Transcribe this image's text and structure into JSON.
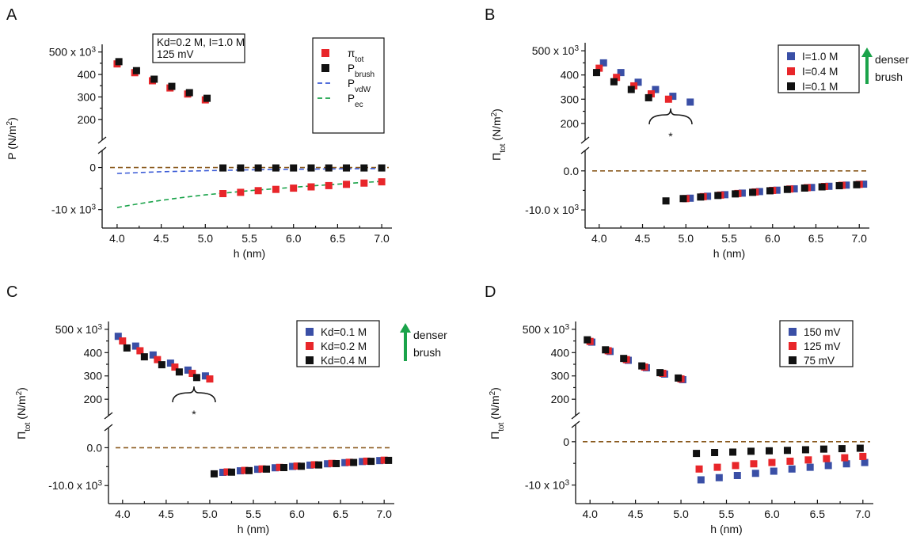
{
  "colors": {
    "red": "#e8262a",
    "black": "#111111",
    "blue": "#3a4fa6",
    "vdw": "#3b5bd6",
    "ec": "#1aa34a",
    "ref": "#8a5a1e",
    "arrow": "#1aa34a"
  },
  "chart_data": [
    {
      "panel": "A",
      "type": "scatter",
      "xlabel": "h (nm)",
      "ylabel": "P (N/m²)",
      "ylabel_parts": [
        "P (N/m",
        "2",
        ")"
      ],
      "xlim": [
        3.92,
        7.08
      ],
      "x_ticks": [
        "4.0",
        "4.5",
        "5.0",
        "5.5",
        "6.0",
        "6.5",
        "7.0"
      ],
      "upper": {
        "ylim": [
          150000,
          520000
        ],
        "ticks": [
          "200",
          "300",
          "400"
        ],
        "top_tick_label": "500 x 10",
        "top_tick_exp": "3"
      },
      "lower": {
        "ylim": [
          -11000,
          1800
        ],
        "ticks": [
          "0"
        ],
        "bottom_tick_label": "-10 x 10",
        "bottom_tick_exp": "3"
      },
      "note": [
        "Kd=0.2 M, I=1.0 M",
        "125 mV"
      ],
      "legend": [
        {
          "label": "π",
          "sub": "tot",
          "marker": "square",
          "color": "#e8262a"
        },
        {
          "label": "P",
          "sub": "brush",
          "marker": "square",
          "color": "#111111"
        },
        {
          "label": "P",
          "sub": "vdW",
          "marker": "dash",
          "color": "#3b5bd6"
        },
        {
          "label": "P",
          "sub": "ec",
          "marker": "dash",
          "color": "#1aa34a"
        }
      ],
      "series": [
        {
          "name": "πtot",
          "color": "#e8262a",
          "upper": {
            "x": [
              4.0,
              4.2,
              4.4,
              4.6,
              4.8,
              5.0
            ],
            "y": [
              447000,
              408000,
              372000,
              340000,
              313000,
              287000
            ]
          },
          "lower": {
            "x": [
              5.2,
              5.4,
              5.6,
              5.8,
              6.0,
              6.2,
              6.4,
              6.6,
              6.8,
              7.0
            ],
            "y": [
              -6200,
              -5900,
              -5500,
              -5200,
              -4900,
              -4600,
              -4300,
              -4000,
              -3700,
              -3400
            ]
          }
        },
        {
          "name": "Pbrush",
          "color": "#111111",
          "upper": {
            "x": [
              4.02,
              4.22,
              4.42,
              4.62,
              4.82,
              5.02
            ],
            "y": [
              457000,
              417000,
              379000,
              347000,
              319000,
              294000
            ]
          },
          "lower": {
            "x": [
              5.2,
              5.4,
              5.6,
              5.8,
              6.0,
              6.2,
              6.4,
              6.6,
              6.8,
              7.0
            ],
            "y": [
              -100,
              -100,
              -100,
              -100,
              -100,
              -100,
              -100,
              -100,
              -100,
              -100
            ]
          }
        }
      ],
      "curves": [
        {
          "name": "PvdW",
          "color": "#3b5bd6",
          "x": [
            4.0,
            4.5,
            5.0,
            5.5,
            6.0,
            6.5,
            7.0
          ],
          "y": [
            -1400,
            -1000,
            -750,
            -550,
            -420,
            -320,
            -250
          ]
        },
        {
          "name": "Pec",
          "color": "#1aa34a",
          "x": [
            4.0,
            4.25,
            4.5,
            4.75,
            5.0,
            5.25,
            5.5,
            5.75,
            6.0,
            6.25,
            6.5,
            6.75,
            7.0
          ],
          "y": [
            -9500,
            -8600,
            -7800,
            -7100,
            -6500,
            -6000,
            -5500,
            -5100,
            -4700,
            -4300,
            -3950,
            -3600,
            -3300
          ]
        }
      ],
      "reference_line": {
        "y": 0,
        "color": "#8a5a1e"
      }
    },
    {
      "panel": "B",
      "type": "scatter",
      "xlabel": "h (nm)",
      "ylabel": "Πtot (N/m²)",
      "ylabel_parts": [
        "Π",
        "tot",
        " (N/m",
        "2",
        ")"
      ],
      "xlim": [
        3.92,
        7.08
      ],
      "x_ticks": [
        "4.0",
        "4.5",
        "5.0",
        "5.5",
        "6.0",
        "6.5",
        "7.0"
      ],
      "upper": {
        "ylim": [
          170000,
          520000
        ],
        "ticks": [
          "200",
          "300",
          "400"
        ],
        "top_tick_label": "500 x 10",
        "top_tick_exp": "3"
      },
      "lower": {
        "ylim": [
          -11000,
          2800
        ],
        "ticks": [
          "0.0"
        ],
        "bottom_tick_label": "-10.0 x 10",
        "bottom_tick_exp": "3"
      },
      "legend": [
        {
          "label": "I=1.0 M",
          "marker": "square",
          "color": "#3a4fa6"
        },
        {
          "label": "I=0.4 M",
          "marker": "square",
          "color": "#e8262a"
        },
        {
          "label": "I=0.1 M",
          "marker": "square",
          "color": "#111111"
        }
      ],
      "annotation": {
        "arrow_text": [
          "denser",
          "brush"
        ],
        "brace_label": "*"
      },
      "series": [
        {
          "name": "I=1.0 M",
          "color": "#3a4fa6",
          "upper": {
            "x": [
              4.05,
              4.25,
              4.45,
              4.65,
              4.85,
              5.05
            ],
            "y": [
              450000,
              410000,
              370000,
              340000,
              312000,
              288000
            ]
          },
          "lower": {
            "x": [
              5.05,
              5.25,
              5.45,
              5.65,
              5.85,
              6.05,
              6.25,
              6.45,
              6.65,
              6.85,
              7.05
            ],
            "y": [
              -7000,
              -6500,
              -6100,
              -5700,
              -5300,
              -4950,
              -4600,
              -4250,
              -3950,
              -3650,
              -3400
            ]
          }
        },
        {
          "name": "I=0.4 M",
          "color": "#e8262a",
          "upper": {
            "x": [
              4.0,
              4.2,
              4.4,
              4.6,
              4.8
            ],
            "y": [
              428000,
              390000,
              355000,
              322000,
              300000
            ]
          },
          "lower": {
            "x": [
              5.0,
              5.2,
              5.4,
              5.6,
              5.8,
              6.0,
              6.2,
              6.4,
              6.6,
              6.8,
              7.0
            ],
            "y": [
              -7100,
              -6600,
              -6200,
              -5800,
              -5400,
              -5000,
              -4650,
              -4300,
              -4000,
              -3700,
              -3450
            ]
          }
        },
        {
          "name": "I=0.1 M",
          "color": "#111111",
          "upper": {
            "x": [
              3.97,
              4.17,
              4.37,
              4.57
            ],
            "y": [
              410000,
              372000,
              340000,
              306000
            ]
          },
          "lower": {
            "x": [
              4.77,
              4.97,
              5.17,
              5.37,
              5.57,
              5.77,
              5.97,
              6.17,
              6.37,
              6.57,
              6.77,
              6.97
            ],
            "y": [
              -7700,
              -7100,
              -6700,
              -6300,
              -5900,
              -5500,
              -5100,
              -4750,
              -4400,
              -4100,
              -3800,
              -3550
            ]
          }
        }
      ],
      "reference_line": {
        "y": 0,
        "color": "#8a5a1e"
      }
    },
    {
      "panel": "C",
      "type": "scatter",
      "xlabel": "h (nm)",
      "ylabel": "Πtot (N/m²)",
      "ylabel_parts": [
        "Π",
        "tot",
        " (N/m",
        "2",
        ")"
      ],
      "xlim": [
        3.92,
        7.08
      ],
      "x_ticks": [
        "4.0",
        "4.5",
        "5.0",
        "5.5",
        "6.0",
        "6.5",
        "7.0"
      ],
      "upper": {
        "ylim": [
          170000,
          520000
        ],
        "ticks": [
          "200",
          "300",
          "400"
        ],
        "top_tick_label": "500 x 10",
        "top_tick_exp": "3"
      },
      "lower": {
        "ylim": [
          -11000,
          2800
        ],
        "ticks": [
          "0.0"
        ],
        "bottom_tick_label": "-10.0 x 10",
        "bottom_tick_exp": "3"
      },
      "legend": [
        {
          "label": "Kd=0.1 M",
          "marker": "square",
          "color": "#3a4fa6"
        },
        {
          "label": "Kd=0.2 M",
          "marker": "square",
          "color": "#e8262a"
        },
        {
          "label": "Kd=0.4 M",
          "marker": "square",
          "color": "#111111"
        }
      ],
      "annotation": {
        "arrow_text": [
          "denser",
          "brush"
        ],
        "brace_label": "*"
      },
      "series": [
        {
          "name": "Kd=0.1 M",
          "color": "#3a4fa6",
          "upper": {
            "x": [
              3.95,
              4.15,
              4.35,
              4.55,
              4.75,
              4.95
            ],
            "y": [
              470000,
              428000,
              390000,
              355000,
              325000,
              300000
            ]
          },
          "lower": {
            "x": [
              5.15,
              5.35,
              5.55,
              5.75,
              5.95,
              6.15,
              6.35,
              6.55,
              6.75,
              6.95
            ],
            "y": [
              -6500,
              -6100,
              -5700,
              -5300,
              -4950,
              -4600,
              -4250,
              -3950,
              -3650,
              -3400
            ]
          }
        },
        {
          "name": "Kd=0.2 M",
          "color": "#e8262a",
          "upper": {
            "x": [
              4.0,
              4.2,
              4.4,
              4.6,
              4.8,
              5.0
            ],
            "y": [
              450000,
              408000,
              370000,
              338000,
              311000,
              287000
            ]
          },
          "lower": {
            "x": [
              5.2,
              5.4,
              5.6,
              5.8,
              6.0,
              6.2,
              6.4,
              6.6,
              6.8,
              7.0
            ],
            "y": [
              -6400,
              -6000,
              -5600,
              -5200,
              -4850,
              -4500,
              -4150,
              -3850,
              -3550,
              -3300
            ]
          }
        },
        {
          "name": "Kd=0.4 M",
          "color": "#111111",
          "upper": {
            "x": [
              4.05,
              4.25,
              4.45,
              4.65,
              4.85
            ],
            "y": [
              420000,
              382000,
              348000,
              317000,
              293000
            ]
          },
          "lower": {
            "x": [
              5.05,
              5.25,
              5.45,
              5.65,
              5.85,
              6.05,
              6.25,
              6.45,
              6.65,
              6.85,
              7.05
            ],
            "y": [
              -6900,
              -6450,
              -6050,
              -5650,
              -5250,
              -4900,
              -4550,
              -4200,
              -3900,
              -3600,
              -3350
            ]
          }
        }
      ],
      "reference_line": {
        "y": 0,
        "color": "#8a5a1e"
      }
    },
    {
      "panel": "D",
      "type": "scatter",
      "xlabel": "h (nm)",
      "ylabel": "Πtot (N/m²)",
      "ylabel_parts": [
        "Π",
        "tot",
        " (N/m",
        "2",
        ")"
      ],
      "xlim": [
        3.92,
        7.08
      ],
      "x_ticks": [
        "4.0",
        "4.5",
        "5.0",
        "5.5",
        "6.0",
        "6.5",
        "7.0"
      ],
      "upper": {
        "ylim": [
          170000,
          520000
        ],
        "ticks": [
          "200",
          "300",
          "400"
        ],
        "top_tick_label": "500 x 10",
        "top_tick_exp": "3"
      },
      "lower": {
        "ylim": [
          -11000,
          1800
        ],
        "ticks": [
          "0"
        ],
        "bottom_tick_label": "-10 x 10",
        "bottom_tick_exp": "3"
      },
      "legend": [
        {
          "label": "150 mV",
          "marker": "square",
          "color": "#3a4fa6"
        },
        {
          "label": "125 mV",
          "marker": "square",
          "color": "#e8262a"
        },
        {
          "label": "75 mV",
          "marker": "square",
          "color": "#111111"
        }
      ],
      "series": [
        {
          "name": "150 mV",
          "color": "#3a4fa6",
          "upper": {
            "x": [
              4.02,
              4.22,
              4.42,
              4.62,
              4.82,
              5.02
            ],
            "y": [
              445000,
              405000,
              367000,
              335000,
              308000,
              284000
            ]
          },
          "lower": {
            "x": [
              5.22,
              5.42,
              5.62,
              5.82,
              6.02,
              6.22,
              6.42,
              6.62,
              6.82,
              7.02
            ],
            "y": [
              -8800,
              -8300,
              -7800,
              -7300,
              -6800,
              -6300,
              -5900,
              -5500,
              -5100,
              -4800
            ]
          }
        },
        {
          "name": "125 mV",
          "color": "#e8262a",
          "upper": {
            "x": [
              4.0,
              4.2,
              4.4,
              4.6,
              4.8,
              5.0
            ],
            "y": [
              448000,
              408000,
              370000,
              338000,
              311000,
              287000
            ]
          },
          "lower": {
            "x": [
              5.2,
              5.4,
              5.6,
              5.8,
              6.0,
              6.2,
              6.4,
              6.6,
              6.8,
              7.0
            ],
            "y": [
              -6300,
              -5900,
              -5500,
              -5100,
              -4800,
              -4500,
              -4200,
              -3900,
              -3700,
              -3400
            ]
          }
        },
        {
          "name": "75 mV",
          "color": "#111111",
          "upper": {
            "x": [
              3.97,
              4.17,
              4.37,
              4.57,
              4.77,
              4.97
            ],
            "y": [
              455000,
              412000,
              375000,
              343000,
              314000,
              291000
            ]
          },
          "lower": {
            "x": [
              5.17,
              5.37,
              5.57,
              5.77,
              5.97,
              6.17,
              6.37,
              6.57,
              6.77,
              6.97
            ],
            "y": [
              -2700,
              -2500,
              -2400,
              -2200,
              -2100,
              -2000,
              -1850,
              -1700,
              -1600,
              -1500
            ]
          }
        }
      ],
      "reference_line": {
        "y": 0,
        "color": "#8a5a1e"
      }
    }
  ]
}
